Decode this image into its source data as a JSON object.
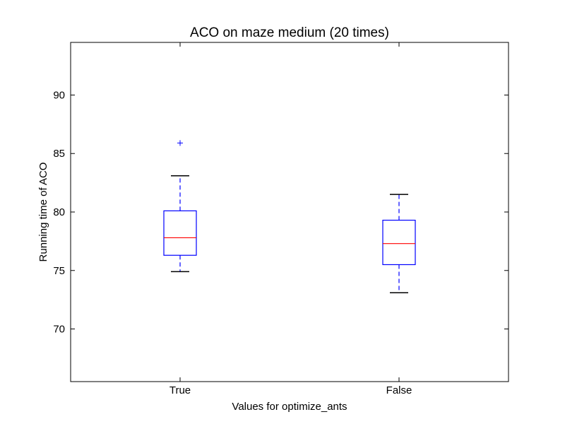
{
  "chart_data": {
    "type": "box",
    "title": "ACO on maze medium (20 times)",
    "xlabel": "Values for optimize_ants",
    "ylabel": "Running time of ACO",
    "ylim": [
      65.5,
      94.5
    ],
    "yticks": [
      70,
      75,
      80,
      85,
      90
    ],
    "categories": [
      "True",
      "False"
    ],
    "boxes": [
      {
        "category": "True",
        "whisker_low": 74.9,
        "q1": 76.3,
        "median": 77.8,
        "q3": 80.1,
        "whisker_high": 83.1,
        "outliers": [
          85.9
        ]
      },
      {
        "category": "False",
        "whisker_low": 73.1,
        "q1": 75.5,
        "median": 77.3,
        "q3": 79.3,
        "whisker_high": 81.5,
        "outliers": []
      }
    ],
    "grid": false,
    "colors": {
      "box": "#0000ff",
      "median": "#ff0000",
      "cap": "#000000",
      "outlier": "#0000ff"
    }
  }
}
